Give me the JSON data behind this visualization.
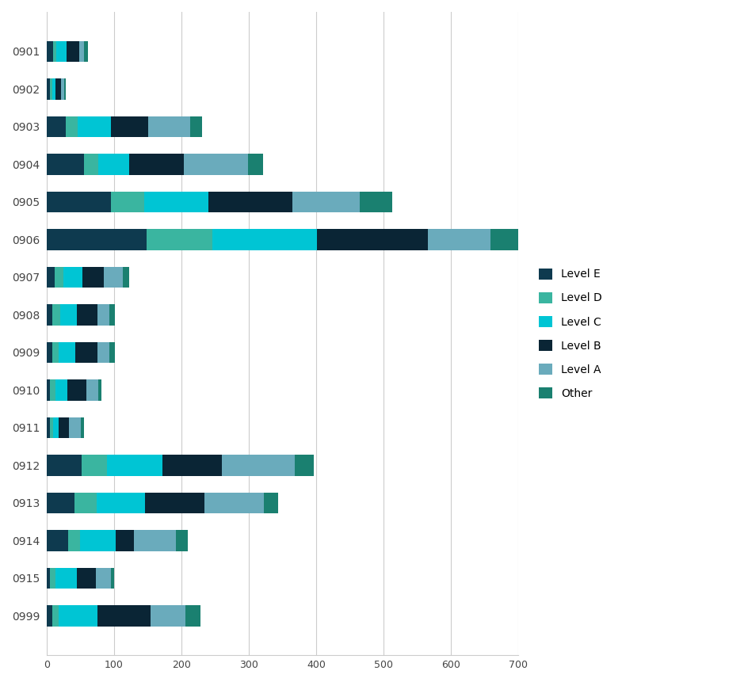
{
  "categories": [
    "0901",
    "0902",
    "0903",
    "0904",
    "0905",
    "0906",
    "0907",
    "0908",
    "0909",
    "0910",
    "0911",
    "0912",
    "0913",
    "0914",
    "0915",
    "0999"
  ],
  "levels": [
    "Level E",
    "Level D",
    "Level C",
    "Level B",
    "Level A",
    "Other"
  ],
  "colors": [
    "#0e3a4f",
    "#3ab5a0",
    "#00c5d4",
    "#0a2535",
    "#6aabbc",
    "#1a8070"
  ],
  "data": [
    [
      10,
      5,
      15,
      18,
      8,
      5
    ],
    [
      5,
      3,
      5,
      8,
      5,
      3
    ],
    [
      28,
      18,
      50,
      55,
      62,
      18
    ],
    [
      55,
      22,
      45,
      82,
      95,
      22
    ],
    [
      95,
      50,
      95,
      125,
      100,
      48
    ],
    [
      148,
      98,
      155,
      165,
      92,
      58
    ],
    [
      12,
      13,
      28,
      32,
      28,
      10
    ],
    [
      8,
      12,
      25,
      30,
      18,
      8
    ],
    [
      8,
      10,
      25,
      32,
      18,
      8
    ],
    [
      5,
      8,
      18,
      28,
      18,
      5
    ],
    [
      5,
      5,
      8,
      15,
      18,
      5
    ],
    [
      52,
      38,
      82,
      88,
      108,
      28
    ],
    [
      42,
      32,
      72,
      88,
      88,
      22
    ],
    [
      32,
      18,
      52,
      28,
      62,
      18
    ],
    [
      5,
      8,
      32,
      28,
      22,
      5
    ],
    [
      8,
      10,
      58,
      78,
      52,
      22
    ]
  ],
  "xlim": [
    0,
    700
  ],
  "xticks": [
    0,
    100,
    200,
    300,
    400,
    500,
    600,
    700
  ],
  "background_color": "#ffffff",
  "grid_color": "#cccccc",
  "bar_height": 0.55,
  "figsize": [
    9.45,
    8.61
  ],
  "dpi": 100,
  "ytick_fontsize": 10,
  "xtick_fontsize": 9,
  "legend_fontsize": 10
}
